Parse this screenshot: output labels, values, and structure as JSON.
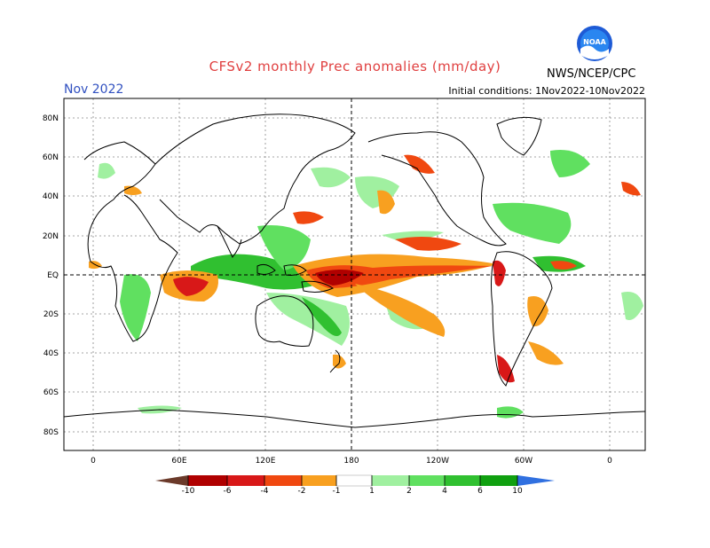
{
  "header": {
    "title": "CFSv2 monthly Prec anomalies (mm/day)",
    "month": "Nov 2022",
    "initial_conditions": "Initial conditions: 1Nov2022-10Nov2022",
    "agency": "NWS/NCEP/CPC",
    "logo_text": "NOAA"
  },
  "map": {
    "lat_labels": [
      "80N",
      "60N",
      "40N",
      "20N",
      "EQ",
      "20S",
      "40S",
      "60S",
      "80S"
    ],
    "lon_labels": [
      "0",
      "60E",
      "120E",
      "180",
      "120W",
      "60W",
      "0"
    ]
  },
  "colorbar": {
    "tick_labels": [
      "-10",
      "-6",
      "-4",
      "-2",
      "-1",
      "1",
      "2",
      "4",
      "6",
      "10"
    ],
    "colors": {
      "lt_minus10": "#6b3a2a",
      "m10_m6": "#b00000",
      "m6_m4": "#d81818",
      "m4_m2": "#f04810",
      "m2_m1": "#f8a020",
      "neutral": "#ffffff",
      "p1_p2": "#a0f0a0",
      "p2_p4": "#60e060",
      "p4_p6": "#30c030",
      "p6_p10": "#10a010",
      "gt10": "#3070e0"
    }
  }
}
